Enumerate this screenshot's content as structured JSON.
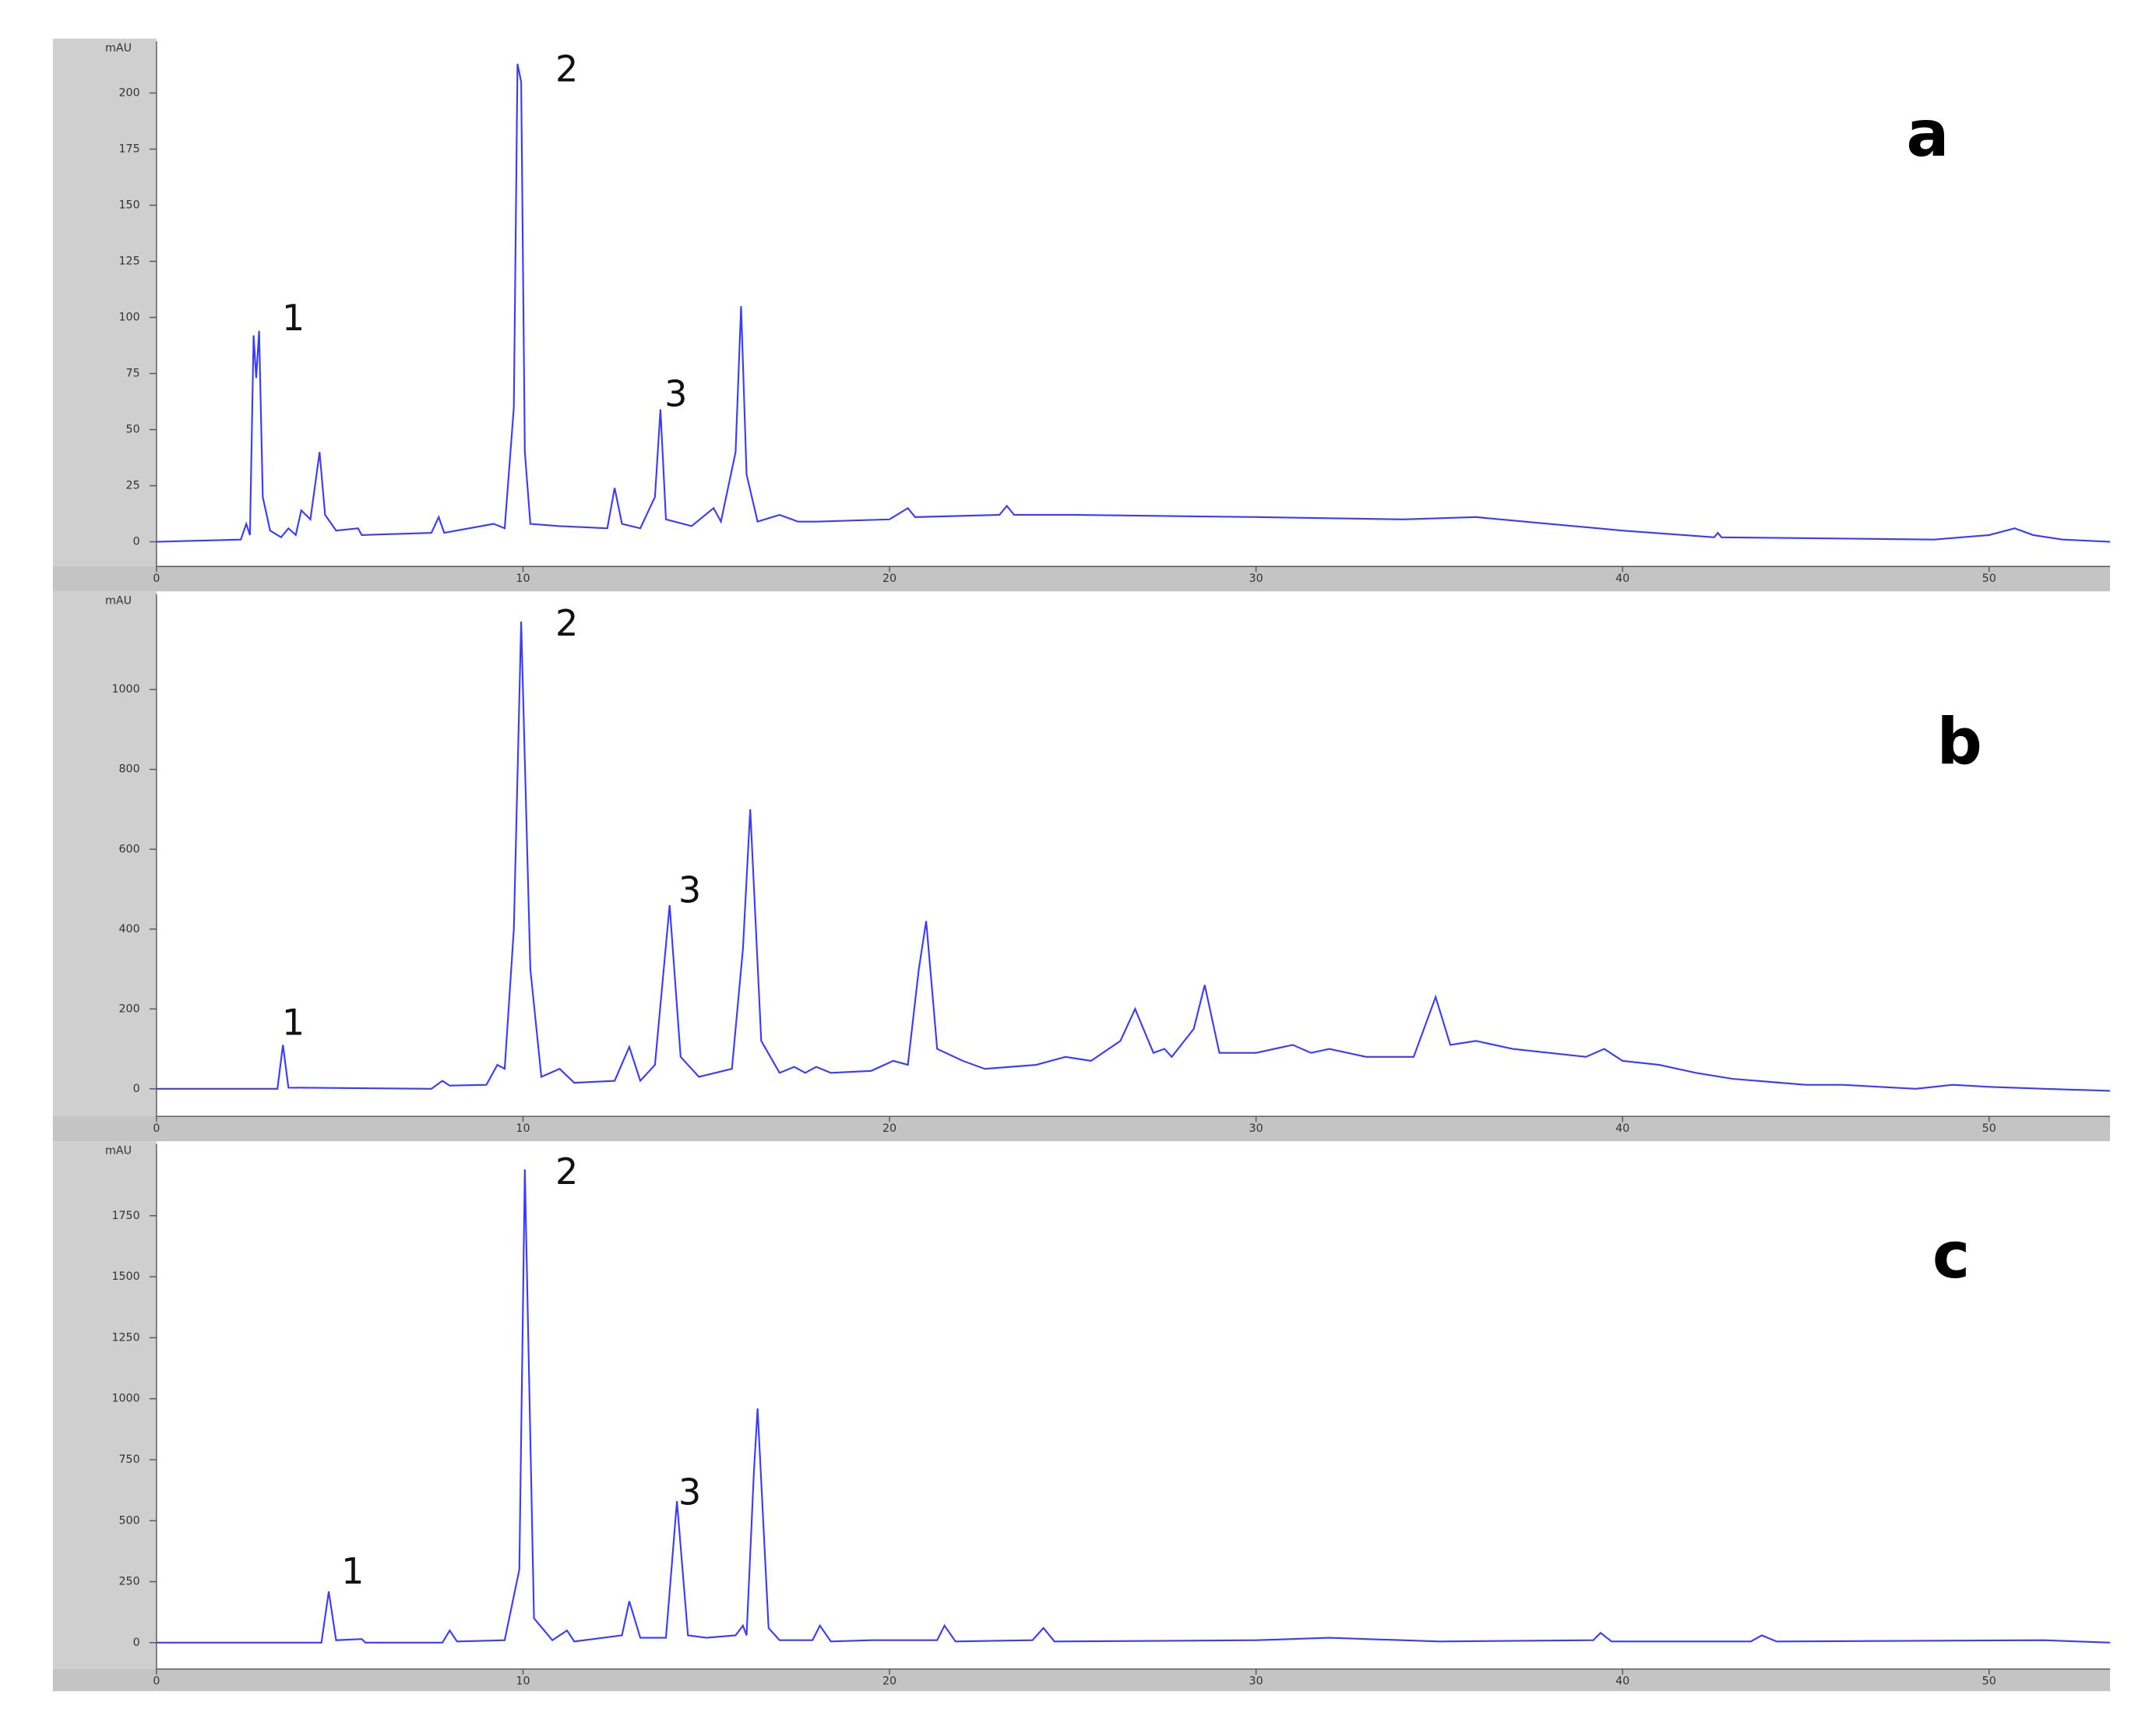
{
  "chart_data": [
    {
      "type": "line",
      "label": "a",
      "ylabel": "mAU",
      "annotations": [
        "1",
        "2",
        "3"
      ],
      "xlim": [
        0,
        53.3
      ],
      "xticks": [
        0,
        10,
        20,
        30,
        40,
        50
      ],
      "ylim": [
        -11,
        223
      ],
      "yticks": [
        0,
        25,
        50,
        75,
        100,
        125,
        150,
        175,
        200
      ],
      "color": "#3b3bff",
      "x": [
        0,
        2.3,
        2.45,
        2.55,
        2.65,
        2.72,
        2.8,
        2.9,
        3.1,
        3.4,
        3.6,
        3.8,
        3.95,
        4.2,
        4.45,
        4.6,
        4.9,
        5.5,
        5.6,
        7.5,
        7.7,
        7.85,
        9.2,
        9.5,
        9.75,
        9.85,
        9.95,
        10.05,
        10.2,
        11,
        12.3,
        12.5,
        12.7,
        13.2,
        13.6,
        13.75,
        13.9,
        14.6,
        15.2,
        15.4,
        15.8,
        15.95,
        16.1,
        16.4,
        17,
        17.5,
        18,
        20,
        20.5,
        20.7,
        23,
        23.2,
        23.4,
        25,
        30,
        34,
        36,
        38,
        40,
        42.5,
        42.6,
        42.7,
        48.5,
        50,
        50.7,
        51.2,
        52,
        53.3
      ],
      "values": [
        0,
        1,
        8,
        3,
        92,
        73,
        94,
        20,
        5,
        2,
        6,
        3,
        14,
        10,
        40,
        12,
        5,
        6,
        3,
        4,
        11,
        4,
        8,
        6,
        60,
        213,
        205,
        40,
        8,
        7,
        6,
        24,
        8,
        6,
        20,
        59,
        10,
        7,
        15,
        9,
        40,
        105,
        30,
        9,
        12,
        9,
        9,
        10,
        15,
        11,
        12,
        16,
        12,
        12,
        11,
        10,
        11,
        8,
        5,
        2,
        4,
        2,
        1,
        3,
        6,
        3,
        1,
        0
      ]
    },
    {
      "type": "line",
      "label": "b",
      "ylabel": "mAU",
      "annotations": [
        "1",
        "2",
        "3"
      ],
      "xlim": [
        0,
        53.3
      ],
      "xticks": [
        0,
        10,
        20,
        30,
        40,
        50
      ],
      "ylim": [
        -69,
        1239
      ],
      "yticks": [
        0,
        200,
        400,
        600,
        800,
        1000
      ],
      "color": "#3b3bff",
      "x": [
        0,
        3.3,
        3.45,
        3.6,
        7.5,
        7.8,
        8,
        9,
        9.3,
        9.5,
        9.75,
        9.95,
        10.2,
        10.5,
        11,
        11.4,
        12.5,
        12.9,
        13.2,
        13.6,
        14,
        14.3,
        14.8,
        15.7,
        16,
        16.2,
        16.5,
        17,
        17.4,
        17.7,
        18,
        18.4,
        19.5,
        20.1,
        20.5,
        20.8,
        21,
        21.3,
        22,
        22.6,
        24,
        24.8,
        25.5,
        26.3,
        26.7,
        27.2,
        27.5,
        27.7,
        28.3,
        28.6,
        29,
        30,
        31,
        31.5,
        32,
        33,
        34.3,
        34.9,
        35.3,
        36,
        37,
        38,
        39,
        39.5,
        40,
        41,
        42,
        43,
        45,
        46,
        48,
        49,
        50,
        51.5,
        53.3
      ],
      "values": [
        0,
        0,
        110,
        3,
        0,
        20,
        8,
        10,
        60,
        50,
        400,
        1170,
        300,
        30,
        50,
        15,
        20,
        105,
        20,
        60,
        460,
        80,
        30,
        50,
        350,
        700,
        120,
        40,
        55,
        40,
        55,
        40,
        45,
        70,
        60,
        300,
        420,
        100,
        70,
        50,
        60,
        80,
        70,
        120,
        200,
        90,
        100,
        80,
        150,
        260,
        90,
        90,
        110,
        90,
        100,
        80,
        80,
        230,
        110,
        120,
        100,
        90,
        80,
        100,
        70,
        60,
        40,
        25,
        10,
        10,
        0,
        10,
        5,
        0,
        -5
      ]
    },
    {
      "type": "line",
      "label": "c",
      "ylabel": "mAU",
      "annotations": [
        "1",
        "2",
        "3"
      ],
      "xlim": [
        0,
        53.3
      ],
      "xticks": [
        0,
        10,
        20,
        30,
        40,
        50
      ],
      "ylim": [
        -108,
        2044
      ],
      "yticks": [
        0,
        250,
        500,
        750,
        1000,
        1250,
        1500,
        1750
      ],
      "color": "#3b3bff",
      "x": [
        0,
        4.5,
        4.7,
        4.9,
        5.6,
        5.7,
        7.8,
        8,
        8.2,
        9.5,
        9.9,
        10.05,
        10.3,
        10.8,
        11.2,
        11.4,
        12.7,
        12.9,
        13.2,
        13.9,
        14.2,
        14.5,
        15,
        15.8,
        16,
        16.1,
        16.3,
        16.4,
        16.7,
        17,
        17.9,
        18.1,
        18.4,
        19.5,
        21.3,
        21.5,
        21.8,
        23.9,
        24.2,
        24.5,
        30,
        32,
        35,
        39.2,
        39.4,
        39.7,
        43.5,
        43.8,
        44.2,
        51.5,
        53.3
      ],
      "values": [
        0,
        0,
        210,
        10,
        15,
        0,
        0,
        50,
        5,
        10,
        300,
        1940,
        100,
        10,
        50,
        5,
        30,
        170,
        20,
        20,
        580,
        30,
        20,
        30,
        70,
        30,
        700,
        960,
        60,
        10,
        10,
        70,
        5,
        10,
        10,
        70,
        5,
        10,
        60,
        5,
        10,
        20,
        5,
        10,
        40,
        5,
        5,
        30,
        5,
        10,
        0
      ]
    }
  ]
}
